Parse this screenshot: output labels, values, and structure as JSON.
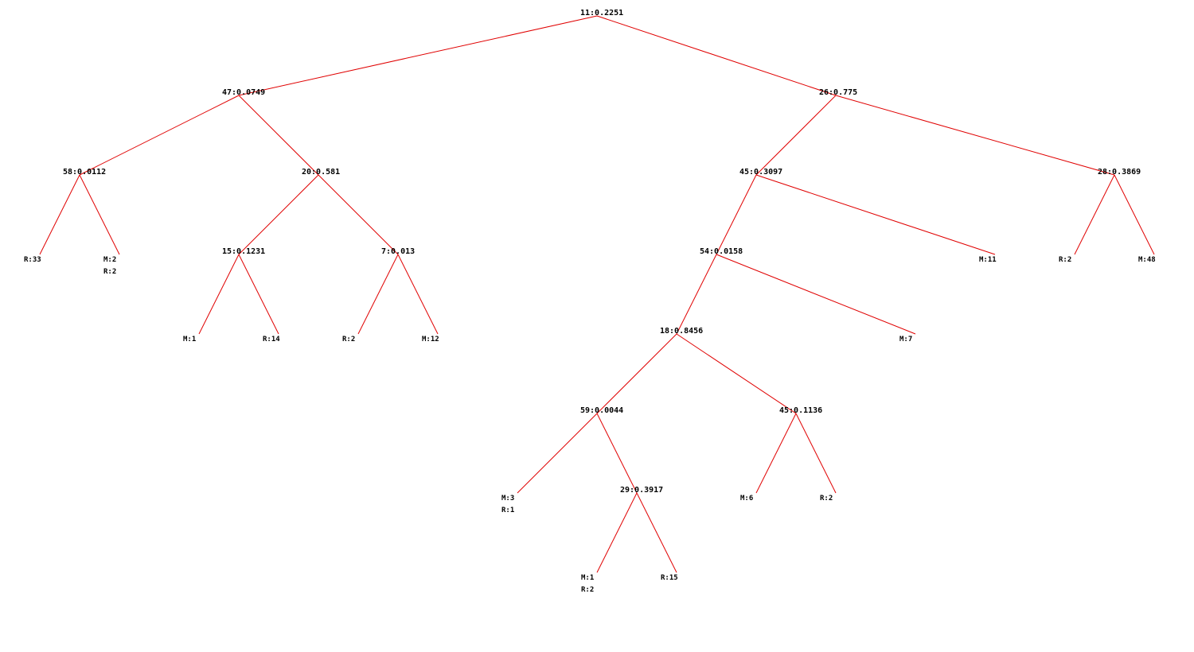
{
  "edge_color": "#e00000",
  "tree": {
    "label": "11:0.2251",
    "children": [
      {
        "label": "47:0.0749",
        "children": [
          {
            "label": "58:0.0112",
            "children": [
              {
                "leaf": [
                  "R:33"
                ]
              },
              {
                "leaf": [
                  "M:2",
                  "R:2"
                ]
              }
            ]
          },
          {
            "label": "20:0.581",
            "children": [
              {
                "label": "15:0.1231",
                "children": [
                  {
                    "leaf": [
                      "M:1"
                    ]
                  },
                  {
                    "leaf": [
                      "R:14"
                    ]
                  }
                ]
              },
              {
                "label": "7:0.013",
                "children": [
                  {
                    "leaf": [
                      "R:2"
                    ]
                  },
                  {
                    "leaf": [
                      "M:12"
                    ]
                  }
                ]
              }
            ]
          }
        ]
      },
      {
        "label": "26:0.775",
        "children": [
          {
            "label": "45:0.3097",
            "children": [
              {
                "label": "54:0.0158",
                "children": [
                  {
                    "label": "18:0.8456",
                    "children": [
                      {
                        "label": "59:0.0044",
                        "children": [
                          {
                            "leaf": [
                              "M:3",
                              "R:1"
                            ]
                          },
                          {
                            "label": "29:0.3917",
                            "children": [
                              {
                                "leaf": [
                                  "M:1",
                                  "R:2"
                                ]
                              },
                              {
                                "leaf": [
                                  "R:15"
                                ]
                              }
                            ]
                          }
                        ]
                      },
                      {
                        "label": "45:0.1136",
                        "children": [
                          {
                            "leaf": [
                              "M:6"
                            ]
                          },
                          {
                            "leaf": [
                              "R:2"
                            ]
                          }
                        ]
                      }
                    ]
                  },
                  {
                    "leaf": [
                      "M:7"
                    ]
                  }
                ]
              },
              {
                "leaf": [
                  "M:11"
                ]
              }
            ]
          },
          {
            "label": "28:0.3869",
            "children": [
              {
                "leaf": [
                  "R:2"
                ]
              },
              {
                "leaf": [
                  "M:48"
                ]
              }
            ]
          }
        ]
      }
    ]
  }
}
